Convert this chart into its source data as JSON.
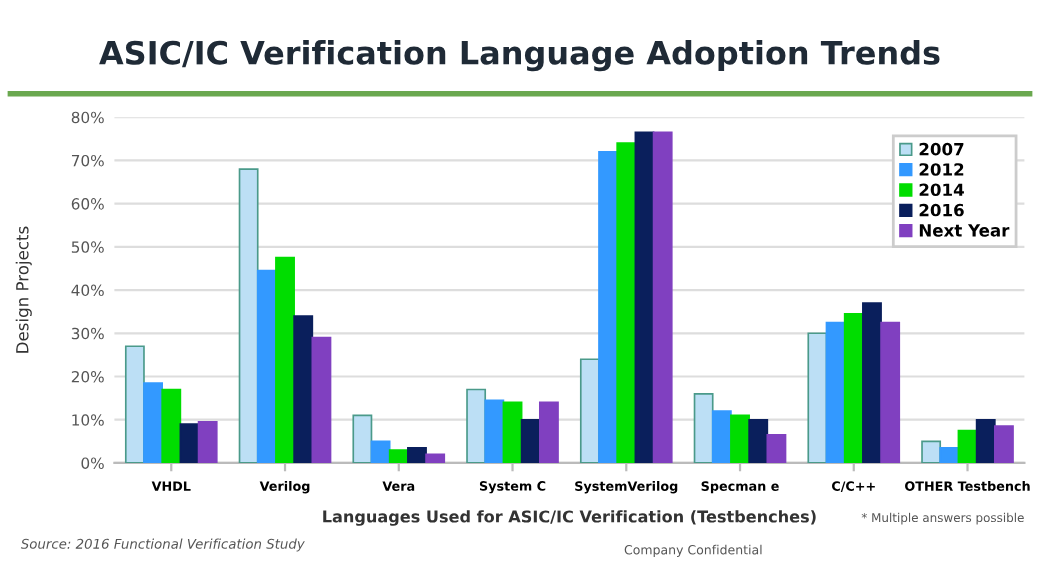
{
  "chart_data": {
    "type": "bar",
    "title": "ASIC/IC Verification Language Adoption Trends",
    "xlabel": "Languages Used for ASIC/IC Verification (Testbenches)",
    "ylabel": "Design Projects",
    "categories": [
      "VHDL",
      "Verilog",
      "Vera",
      "System C",
      "SystemVerilog",
      "Specman e",
      "C/C++",
      "OTHER Testbench"
    ],
    "series": [
      {
        "name": "2007",
        "color": "#bcdff5",
        "values": [
          27,
          68,
          11,
          17,
          24,
          16,
          30,
          5
        ]
      },
      {
        "name": "2012",
        "color": "#3399ff",
        "values": [
          18.5,
          44.5,
          5,
          14.5,
          72,
          12,
          32.5,
          3.5
        ]
      },
      {
        "name": "2014",
        "color": "#00dd00",
        "values": [
          17,
          47.5,
          3,
          14,
          74,
          11,
          34.5,
          7.5
        ]
      },
      {
        "name": "2016",
        "color": "#0a1f5c",
        "values": [
          9,
          34,
          3.5,
          10,
          76.5,
          10,
          37,
          10
        ]
      },
      {
        "name": "Next Year",
        "color": "#8040c0",
        "values": [
          9.5,
          29,
          2,
          14,
          76.5,
          6.5,
          32.5,
          8.5
        ]
      }
    ],
    "ylim": [
      0,
      80
    ],
    "yticks": [
      {
        "value": 0,
        "label": "0%"
      },
      {
        "value": 10,
        "label": "10%"
      },
      {
        "value": 20,
        "label": "20%"
      },
      {
        "value": 30,
        "label": "30%"
      },
      {
        "value": 40,
        "label": "40%"
      },
      {
        "value": 50,
        "label": "50%"
      },
      {
        "value": 60,
        "label": "60%"
      },
      {
        "value": 70,
        "label": "70%"
      },
      {
        "value": 80,
        "label": "80%"
      }
    ],
    "grid": "y",
    "legend": "top right",
    "annotations": [
      "* Multiple answers possible",
      "Source: 2016 Functional Verification Study",
      "Company Confidential"
    ]
  }
}
